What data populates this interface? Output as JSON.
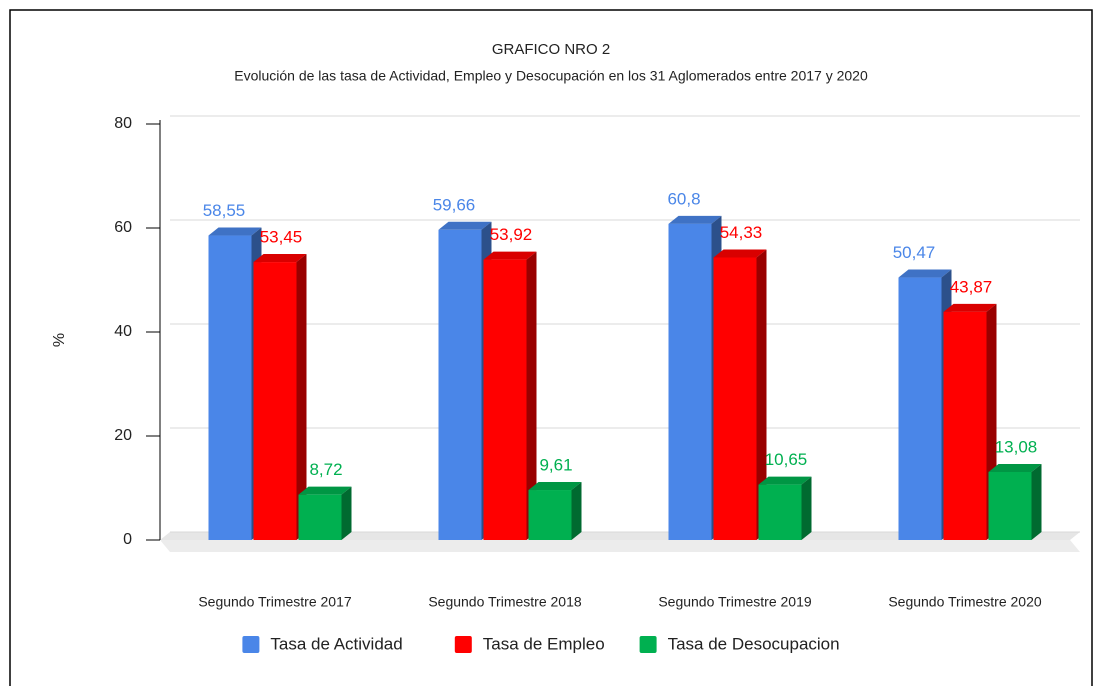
{
  "chart_data": {
    "type": "bar3d",
    "title": "GRAFICO NRO 2",
    "subtitle": "Evolución de las tasa de Actividad, Empleo y Desocupación en los 31 Aglomerados entre 2017 y 2020",
    "y_label": "%",
    "categories": [
      "Segundo Trimestre 2017",
      "Segundo Trimestre 2018",
      "Segundo Trimestre 2019",
      "Segundo Trimestre 2020"
    ],
    "series": [
      {
        "name": "Tasa de Actividad",
        "color": "#4a86e8",
        "values": [
          58.55,
          59.66,
          60.8,
          50.47
        ],
        "value_labels": [
          "58,55",
          "59,66",
          "60,8",
          "50,47"
        ]
      },
      {
        "name": "Tasa de Empleo",
        "color": "#ff0000",
        "values": [
          53.45,
          53.92,
          54.33,
          43.87
        ],
        "value_labels": [
          "53,45",
          "53,92",
          "54,33",
          "43,87"
        ]
      },
      {
        "name": "Tasa de Desocupacion",
        "color": "#00b050",
        "values": [
          8.72,
          9.61,
          10.65,
          13.08
        ],
        "value_labels": [
          "8,72",
          "9,61",
          "10,65",
          "13,08"
        ]
      }
    ],
    "ylim": [
      0,
      80
    ],
    "yticks": [
      0,
      20,
      40,
      60,
      80
    ],
    "grid": true,
    "legend": "bottom"
  }
}
